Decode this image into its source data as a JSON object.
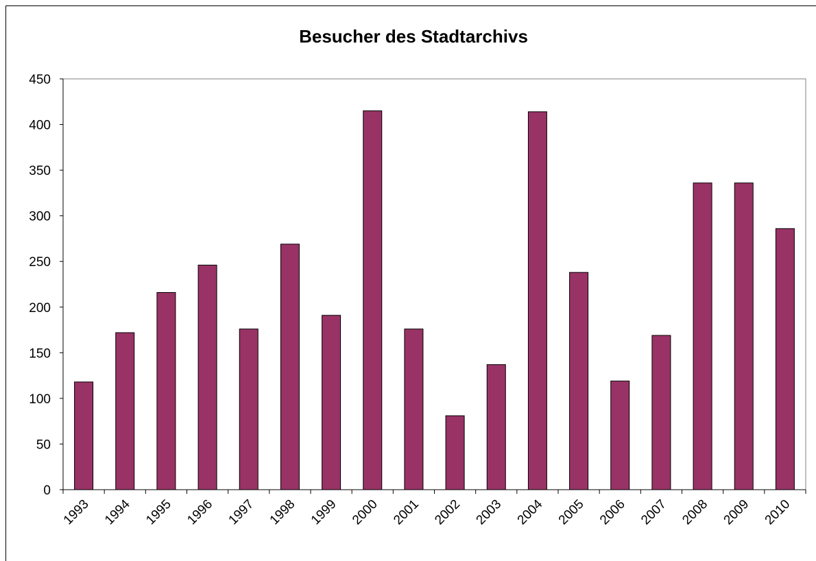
{
  "chart_data": {
    "type": "bar",
    "title": "Besucher des Stadtarchivs",
    "categories": [
      "1993",
      "1994",
      "1995",
      "1996",
      "1997",
      "1998",
      "1999",
      "2000",
      "2001",
      "2002",
      "2003",
      "2004",
      "2005",
      "2006",
      "2007",
      "2008",
      "2009",
      "2010"
    ],
    "values": [
      118,
      172,
      216,
      246,
      176,
      269,
      191,
      415,
      176,
      81,
      137,
      414,
      238,
      119,
      169,
      336,
      336,
      286
    ],
    "color": "#993366",
    "ylim": [
      0,
      450
    ],
    "yticks": [
      0,
      50,
      100,
      150,
      200,
      250,
      300,
      350,
      400,
      450
    ],
    "grid": false
  }
}
